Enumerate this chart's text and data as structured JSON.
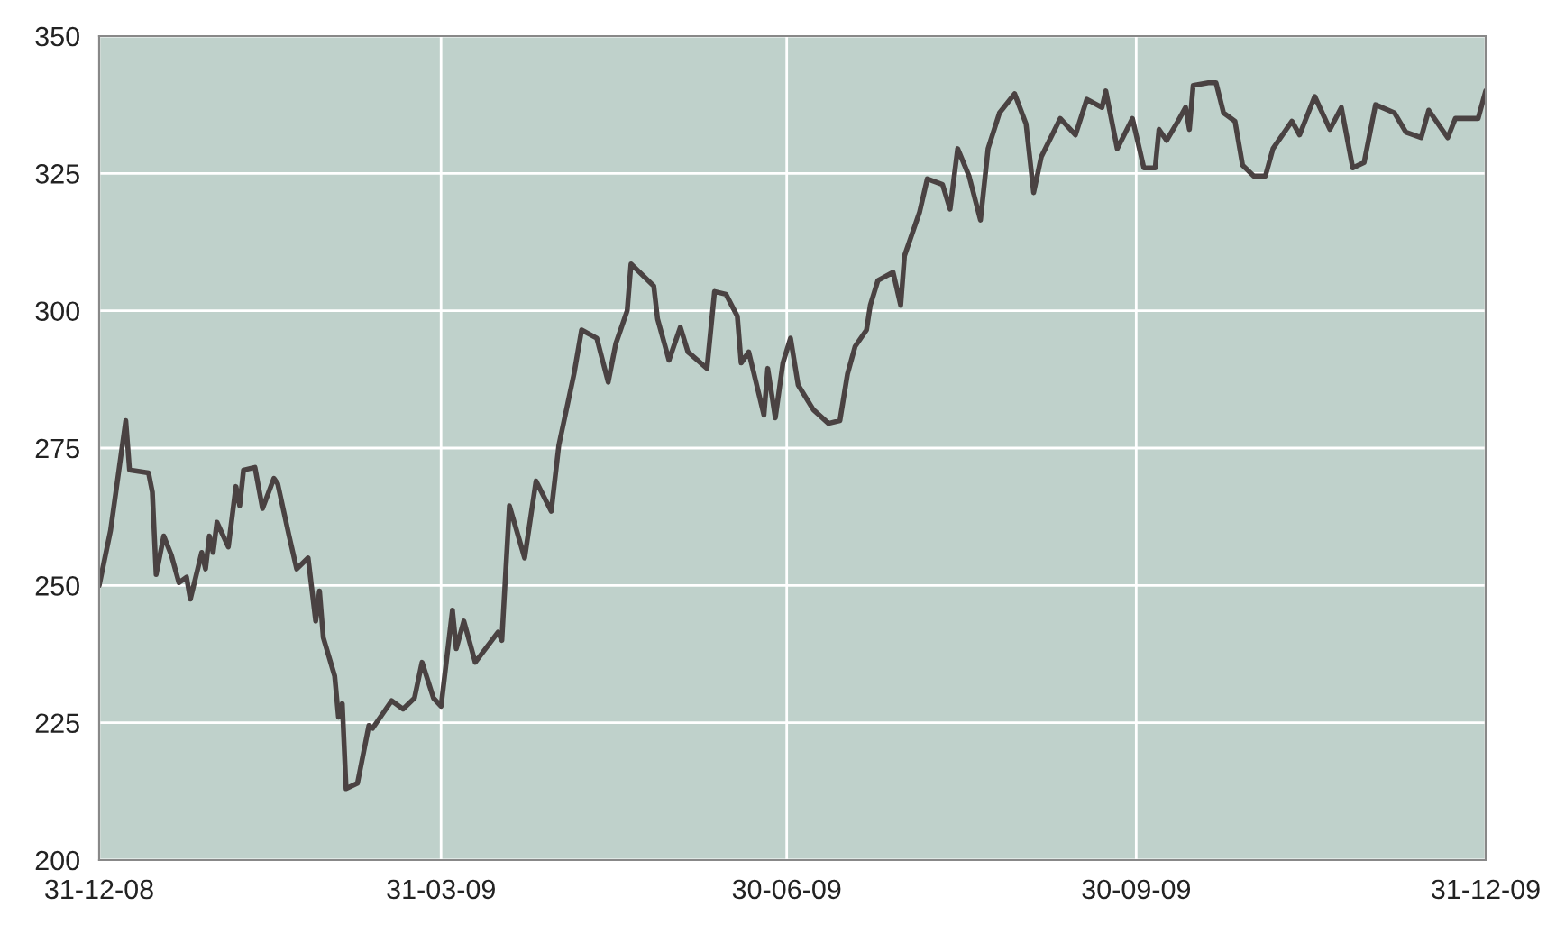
{
  "chart_data": {
    "type": "line",
    "x": [
      "2008-12-31",
      "2009-01-03",
      "2009-01-07",
      "2009-01-08",
      "2009-01-13",
      "2009-01-14",
      "2009-01-15",
      "2009-01-17",
      "2009-01-19",
      "2009-01-21",
      "2009-01-23",
      "2009-01-24",
      "2009-01-27",
      "2009-01-28",
      "2009-01-29",
      "2009-01-30",
      "2009-01-31",
      "2009-02-03",
      "2009-02-05",
      "2009-02-06",
      "2009-02-07",
      "2009-02-10",
      "2009-02-12",
      "2009-02-15",
      "2009-02-16",
      "2009-02-19",
      "2009-02-21",
      "2009-02-24",
      "2009-02-26",
      "2009-02-27",
      "2009-02-28",
      "2009-03-03",
      "2009-03-04",
      "2009-03-05",
      "2009-03-06",
      "2009-03-09",
      "2009-03-12",
      "2009-03-13",
      "2009-03-18",
      "2009-03-21",
      "2009-03-24",
      "2009-03-26",
      "2009-03-29",
      "2009-03-31",
      "2009-04-03",
      "2009-04-04",
      "2009-04-06",
      "2009-04-09",
      "2009-04-15",
      "2009-04-16",
      "2009-04-18",
      "2009-04-22",
      "2009-04-25",
      "2009-04-29",
      "2009-05-01",
      "2009-05-05",
      "2009-05-07",
      "2009-05-11",
      "2009-05-14",
      "2009-05-16",
      "2009-05-19",
      "2009-05-20",
      "2009-05-26",
      "2009-05-27",
      "2009-05-30",
      "2009-06-02",
      "2009-06-04",
      "2009-06-09",
      "2009-06-11",
      "2009-06-14",
      "2009-06-17",
      "2009-06-18",
      "2009-06-20",
      "2009-06-24",
      "2009-06-25",
      "2009-06-27",
      "2009-06-29",
      "2009-07-01",
      "2009-07-03",
      "2009-07-07",
      "2009-07-11",
      "2009-07-14",
      "2009-07-16",
      "2009-07-18",
      "2009-07-21",
      "2009-07-22",
      "2009-07-24",
      "2009-07-28",
      "2009-07-30",
      "2009-07-31",
      "2009-08-04",
      "2009-08-06",
      "2009-08-10",
      "2009-08-12",
      "2009-08-14",
      "2009-08-17",
      "2009-08-20",
      "2009-08-22",
      "2009-08-25",
      "2009-08-29",
      "2009-09-01",
      "2009-09-03",
      "2009-09-05",
      "2009-09-10",
      "2009-09-14",
      "2009-09-17",
      "2009-09-21",
      "2009-09-22",
      "2009-09-25",
      "2009-09-29",
      "2009-10-02",
      "2009-10-05",
      "2009-10-06",
      "2009-10-08",
      "2009-10-11",
      "2009-10-13",
      "2009-10-14",
      "2009-10-15",
      "2009-10-19",
      "2009-10-21",
      "2009-10-23",
      "2009-10-26",
      "2009-10-28",
      "2009-10-31",
      "2009-11-03",
      "2009-11-05",
      "2009-11-10",
      "2009-11-12",
      "2009-11-16",
      "2009-11-20",
      "2009-11-23",
      "2009-11-26",
      "2009-11-29",
      "2009-12-02",
      "2009-12-07",
      "2009-12-10",
      "2009-12-14",
      "2009-12-16",
      "2009-12-21",
      "2009-12-23",
      "2009-12-29",
      "2009-12-31"
    ],
    "series": [
      {
        "color": "#4a4242",
        "values": [
          250,
          260,
          280,
          271,
          270.5,
          267,
          252,
          259,
          255.5,
          250.5,
          251.5,
          247.5,
          256,
          253,
          259,
          256,
          261.5,
          257,
          268,
          264.5,
          271,
          271.5,
          264,
          269.5,
          268.5,
          259,
          253,
          255,
          243.5,
          249,
          240.5,
          233.5,
          226,
          228.5,
          213,
          214,
          224.5,
          224,
          229,
          227.5,
          229.5,
          236,
          229.5,
          228,
          245.5,
          238.5,
          243.5,
          236,
          241.5,
          240,
          264.5,
          255,
          269,
          263.5,
          275.5,
          288.5,
          296.5,
          295,
          287,
          294,
          300,
          308.5,
          304.5,
          298.5,
          291,
          297,
          292.5,
          289.5,
          303.5,
          303,
          299,
          290.5,
          292.5,
          281,
          289.5,
          280.5,
          290.5,
          295,
          286.5,
          282,
          279.5,
          280,
          288.5,
          293.5,
          296.5,
          301,
          305.5,
          307,
          301,
          310,
          318,
          324,
          323,
          318.5,
          329.5,
          324.5,
          316.5,
          329.5,
          336,
          339.5,
          334,
          321.5,
          328,
          335,
          332,
          338.5,
          337,
          340,
          329.5,
          335,
          326,
          326,
          333,
          331,
          334.5,
          337,
          333,
          341,
          341.5,
          341.5,
          336,
          334.5,
          326.5,
          324.5,
          324.5,
          329.5,
          334.5,
          332,
          339,
          333,
          337,
          326,
          327,
          337.5,
          336,
          332.5,
          331.5,
          336.5,
          331.5,
          335,
          335,
          340
        ]
      }
    ],
    "xlim": [
      "2008-12-31",
      "2009-12-31"
    ],
    "xticks": [
      {
        "value": "2008-12-31",
        "label": "31-12-08"
      },
      {
        "value": "2009-03-31",
        "label": "31-03-09"
      },
      {
        "value": "2009-06-30",
        "label": "30-06-09"
      },
      {
        "value": "2009-09-30",
        "label": "30-09-09"
      },
      {
        "value": "2009-12-31",
        "label": "31-12-09"
      }
    ],
    "ylim": [
      200,
      350
    ],
    "yticks": [
      200,
      225,
      250,
      275,
      300,
      325,
      350
    ],
    "grid": true,
    "line_style": "solid",
    "marker": "none",
    "legend": false
  }
}
